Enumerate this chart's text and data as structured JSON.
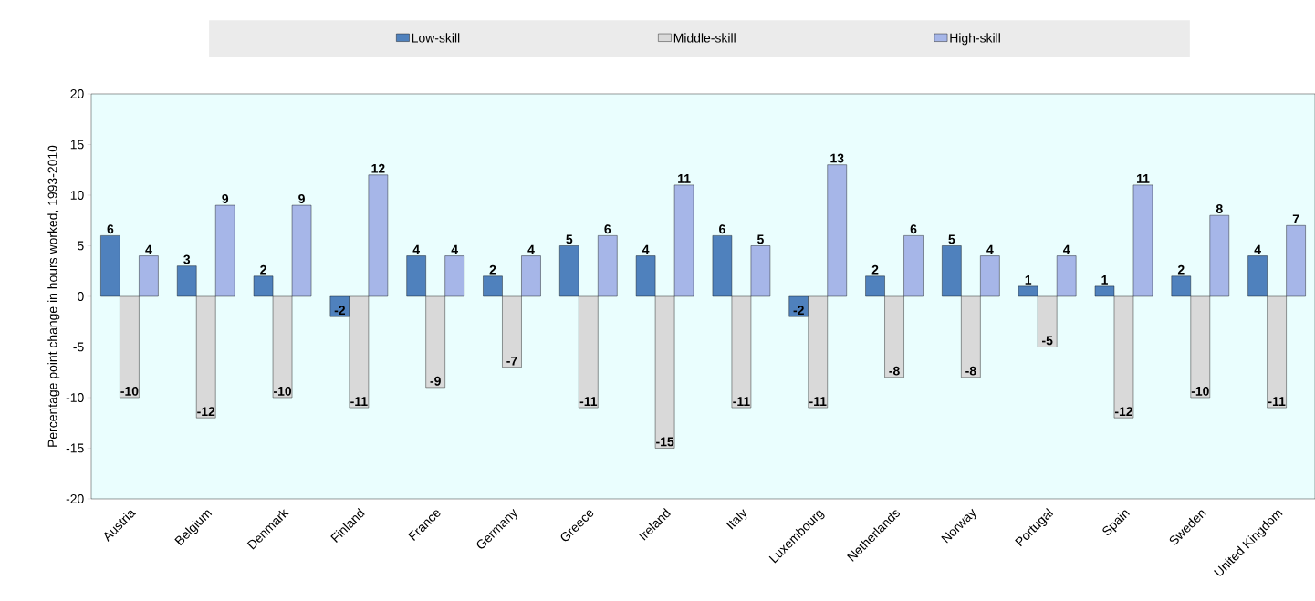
{
  "chart_data": {
    "type": "bar",
    "ylabel": "Percentage point change in hours worked, 1993-2010",
    "categories": [
      "Austria",
      "Belgium",
      "Denmark",
      "Finland",
      "France",
      "Germany",
      "Greece",
      "Ireland",
      "Italy",
      "Luxembourg",
      "Netherlands",
      "Norway",
      "Portugal",
      "Spain",
      "Sweden",
      "United Kingdom"
    ],
    "series": [
      {
        "name": "Low-skill",
        "color": "#4f81bd",
        "values": [
          6,
          3,
          2,
          -2,
          4,
          2,
          5,
          4,
          6,
          -2,
          2,
          5,
          1,
          1,
          2,
          4
        ]
      },
      {
        "name": "Middle-skill",
        "color": "#d9d9d9",
        "values": [
          -10,
          -12,
          -10,
          -11,
          -9,
          -7,
          -11,
          -15,
          -11,
          -11,
          -8,
          -8,
          -5,
          -12,
          -10,
          -11
        ]
      },
      {
        "name": "High-skill",
        "color": "#a6b6e8",
        "values": [
          4,
          9,
          9,
          12,
          4,
          4,
          6,
          11,
          5,
          13,
          6,
          4,
          4,
          11,
          8,
          7
        ]
      }
    ],
    "ylim": [
      -20,
      20
    ],
    "yticks": [
      -20,
      -15,
      -10,
      -5,
      0,
      5,
      10,
      15,
      20
    ],
    "data_labels": true,
    "legend": "top",
    "grid": false
  }
}
